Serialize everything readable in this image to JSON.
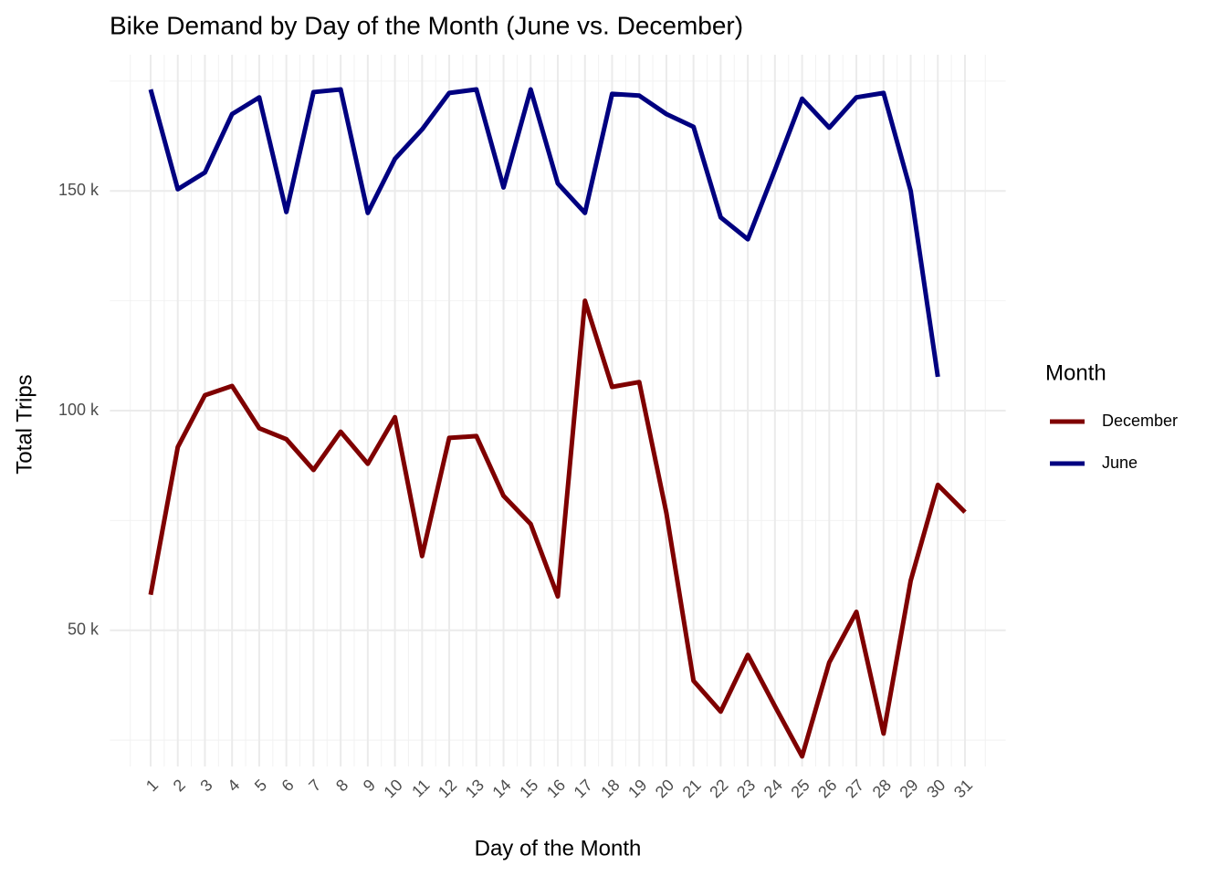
{
  "chart_data": {
    "type": "line",
    "title": "Bike Demand by Day of the Month (June vs. December)",
    "x_label": "Day of the Month",
    "y_label": "Total Trips",
    "legend_title": "Month",
    "legend": "right",
    "grid": true,
    "x": [
      1,
      2,
      3,
      4,
      5,
      6,
      7,
      8,
      9,
      10,
      11,
      12,
      13,
      14,
      15,
      16,
      17,
      18,
      19,
      20,
      21,
      22,
      23,
      24,
      25,
      26,
      27,
      28,
      29,
      30,
      31
    ],
    "xlim": [
      -0.5,
      32.5
    ],
    "xticks": [
      1,
      2,
      3,
      4,
      5,
      6,
      7,
      8,
      9,
      10,
      11,
      12,
      13,
      14,
      15,
      16,
      17,
      18,
      19,
      20,
      21,
      22,
      23,
      24,
      25,
      26,
      27,
      28,
      29,
      30,
      31
    ],
    "ylim": [
      19000,
      181000
    ],
    "yticks": [
      {
        "value": 50000,
        "label": "50 k"
      },
      {
        "value": 100000,
        "label": "100 k"
      },
      {
        "value": 150000,
        "label": "150 k"
      }
    ],
    "yminor": [
      25000,
      75000,
      125000,
      175000
    ],
    "series": [
      {
        "name": "December",
        "color": "#7f0000",
        "values": [
          58100,
          91700,
          103500,
          105600,
          96000,
          93500,
          86500,
          95200,
          87900,
          98500,
          66900,
          93800,
          94200,
          80600,
          74200,
          57700,
          125000,
          105400,
          106500,
          76700,
          38500,
          31500,
          44400,
          32700,
          21300,
          42700,
          54200,
          26500,
          61300,
          83100,
          76900
        ]
      },
      {
        "name": "June",
        "color": "#000080",
        "values": [
          173100,
          150400,
          154200,
          167500,
          171300,
          145200,
          172500,
          173100,
          145000,
          157300,
          164000,
          172300,
          173100,
          150800,
          173100,
          151700,
          145000,
          172100,
          171700,
          167500,
          164600,
          144000,
          139000,
          154800,
          171000,
          164400,
          171300,
          172300,
          150000,
          107700,
          null
        ]
      }
    ]
  }
}
